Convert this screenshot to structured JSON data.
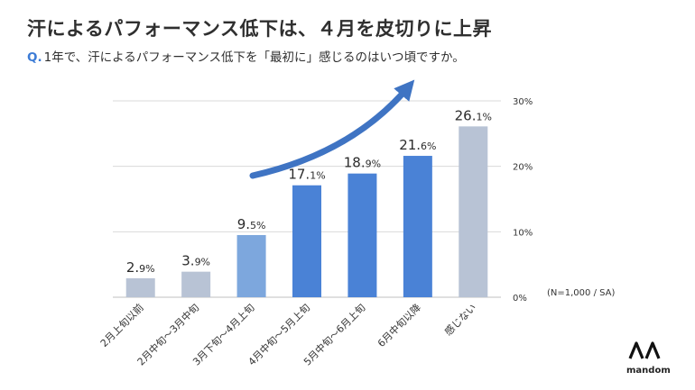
{
  "title": "汗によるパフォーマンス低下は、４月を皮切りに上昇",
  "question": {
    "label": "Q.",
    "text": "1年で、汗によるパフォーマンス低下を「最初に」感じるのはいつ頃ですか。"
  },
  "note": "(N=1,000 / SA)",
  "brand": {
    "name": "mandom",
    "logo_icon": "mandom-logo-icon"
  },
  "colors": {
    "gray_bar": "#b8c3d5",
    "light_blue_bar": "#7da7dd",
    "blue_bar": "#4a82d6",
    "arrow": "#3f74c3",
    "grid": "#d9d9d9"
  },
  "chart_data": {
    "type": "bar",
    "title": "汗によるパフォーマンス低下は、４月を皮切りに上昇",
    "xlabel": "",
    "ylabel": "",
    "ylim": [
      0,
      30
    ],
    "yticks": [
      0,
      10,
      20,
      30
    ],
    "ytick_labels": [
      "0%",
      "10%",
      "20%",
      "30%"
    ],
    "categories": [
      "2月上旬以前",
      "2月中旬〜3月中旬",
      "3月下旬〜4月上旬",
      "4月中旬〜5月上旬",
      "5月中旬〜6月上旬",
      "6月中旬以降",
      "感じない"
    ],
    "values": [
      2.9,
      3.9,
      9.5,
      17.1,
      18.9,
      21.6,
      26.1
    ],
    "value_labels": [
      {
        "int": "2.",
        "dec": "9%"
      },
      {
        "int": "3.",
        "dec": "9%"
      },
      {
        "int": "9.",
        "dec": "5%"
      },
      {
        "int": "17.",
        "dec": "1%"
      },
      {
        "int": "18.",
        "dec": "9%"
      },
      {
        "int": "21.",
        "dec": "6%"
      },
      {
        "int": "26.",
        "dec": "1%"
      }
    ],
    "bar_colors": [
      "gray",
      "gray",
      "light_blue",
      "blue",
      "blue",
      "blue",
      "gray"
    ],
    "annotation": "rising-trend-arrow",
    "grid": true
  }
}
